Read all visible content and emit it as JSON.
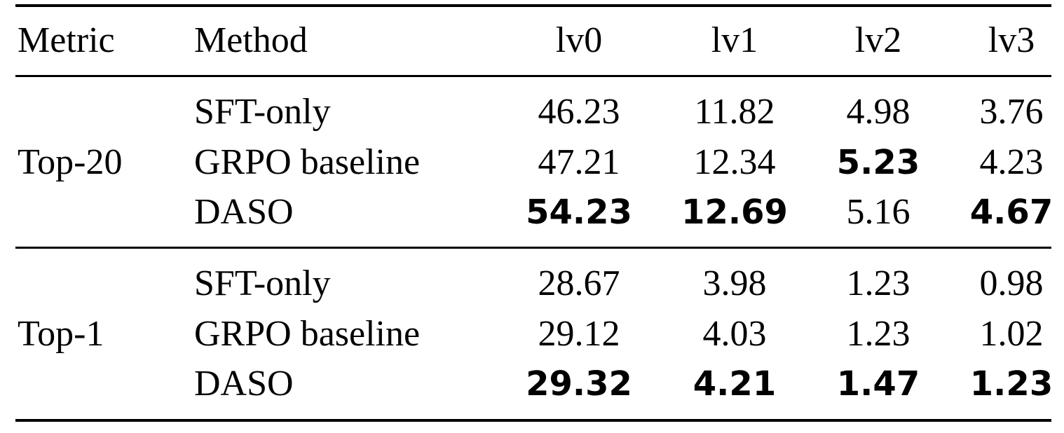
{
  "table": {
    "header": [
      "Metric",
      "Method",
      "lv0",
      "lv1",
      "lv2",
      "lv3"
    ],
    "groups": [
      {
        "metric": "Top-20",
        "rows": [
          {
            "method": "SFT-only",
            "values": [
              "46.23",
              "11.82",
              "4.98",
              "3.76"
            ],
            "bold": [
              false,
              false,
              false,
              false
            ]
          },
          {
            "method": "GRPO baseline",
            "values": [
              "47.21",
              "12.34",
              "5.23",
              "4.23"
            ],
            "bold": [
              false,
              false,
              true,
              false
            ]
          },
          {
            "method": "DASO",
            "values": [
              "54.23",
              "12.69",
              "5.16",
              "4.67"
            ],
            "bold": [
              true,
              true,
              false,
              true
            ]
          }
        ]
      },
      {
        "metric": "Top-1",
        "rows": [
          {
            "method": "SFT-only",
            "values": [
              "28.67",
              "3.98",
              "1.23",
              "0.98"
            ],
            "bold": [
              false,
              false,
              false,
              false
            ]
          },
          {
            "method": "GRPO baseline",
            "values": [
              "29.12",
              "4.03",
              "1.23",
              "1.02"
            ],
            "bold": [
              false,
              false,
              false,
              false
            ]
          },
          {
            "method": "DASO",
            "values": [
              "29.32",
              "4.21",
              "1.47",
              "1.23"
            ],
            "bold": [
              true,
              true,
              true,
              true
            ]
          }
        ]
      }
    ]
  }
}
